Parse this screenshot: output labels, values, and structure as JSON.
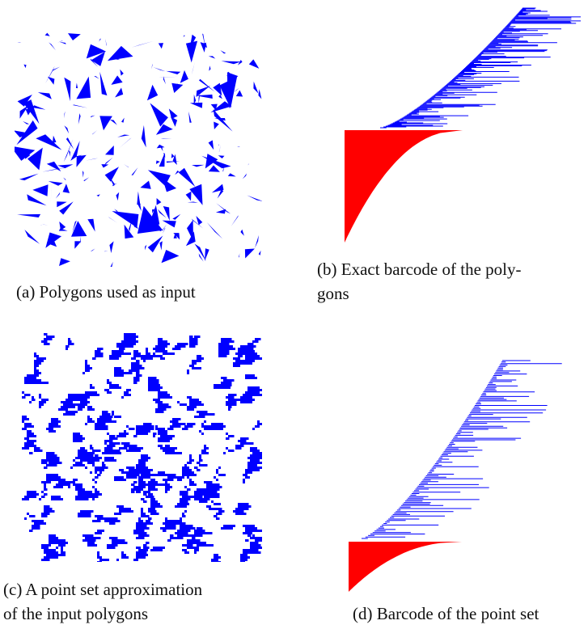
{
  "figure": {
    "panel_a": {
      "caption": "(a) Polygons used as input",
      "fill_color": "#0000ff"
    },
    "panel_b": {
      "caption_line1": "(b) Exact barcode of the poly-",
      "caption_line2": "gons",
      "bar_color": "#0000ff",
      "base_color": "#ff0000"
    },
    "panel_c": {
      "caption_line1": "(c) A point set approximation",
      "caption_line2": "of the input polygons",
      "fill_color": "#0000ff"
    },
    "panel_d": {
      "caption": "(d) Barcode of the point set",
      "bar_color": "#0000ff",
      "base_color": "#ff0000"
    }
  }
}
